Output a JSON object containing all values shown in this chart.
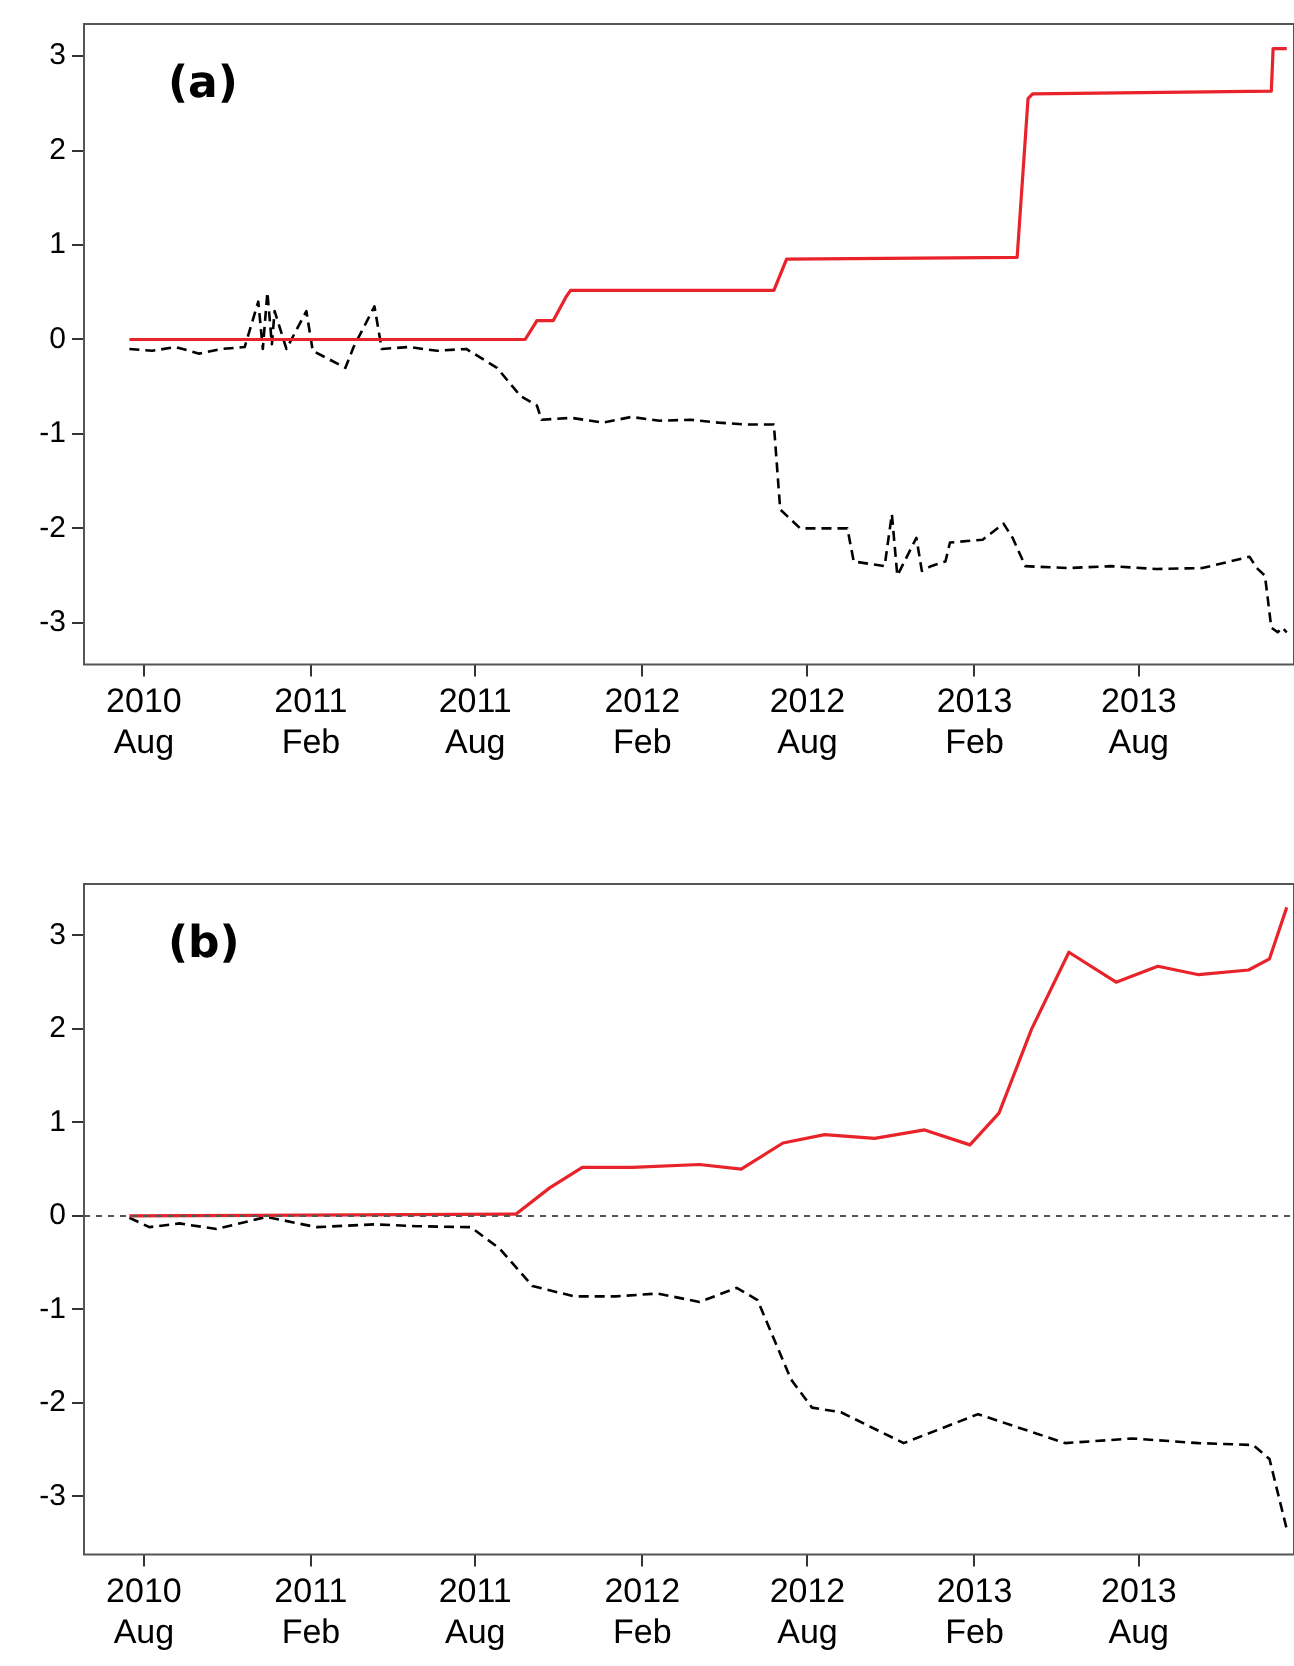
{
  "chart_data": [
    {
      "type": "line",
      "annotations": [
        "(a)"
      ],
      "xlim": [
        "2010-05-27",
        "2014-01-19"
      ],
      "ylim": [
        -3.44,
        3.34
      ],
      "xticks": [
        {
          "value": "2010-08-01",
          "label": "2010 Aug"
        },
        {
          "value": "2011-02-01",
          "label": "2011 Feb"
        },
        {
          "value": "2011-08-01",
          "label": "2011 Aug"
        },
        {
          "value": "2012-02-01",
          "label": "2012 Feb"
        },
        {
          "value": "2012-08-01",
          "label": "2012 Aug"
        },
        {
          "value": "2013-02-01",
          "label": "2013 Feb"
        },
        {
          "value": "2013-08-01",
          "label": "2013 Aug"
        }
      ],
      "yticks": [
        -3,
        -2,
        -1,
        0,
        1,
        2,
        3
      ],
      "legend": false,
      "marker": "none",
      "series": [
        {
          "color": "#e8232a",
          "line_style": "solid",
          "x": [
            "2010-07-16",
            "2011-09-25",
            "2011-10-08",
            "2011-10-26",
            "2011-11-09",
            "2011-11-14",
            "2012-06-25",
            "2012-07-09",
            "2013-03-20",
            "2013-04-01",
            "2013-04-06",
            "2013-12-25",
            "2013-12-27",
            "2014-01-11"
          ],
          "values": [
            0,
            0,
            0.2,
            0.2,
            0.45,
            0.52,
            0.52,
            0.85,
            0.87,
            2.55,
            2.6,
            2.63,
            3.08,
            3.08
          ]
        },
        {
          "color": "#000000",
          "line_style": "dashed",
          "x": [
            "2010-07-16",
            "2010-08-10",
            "2010-09-05",
            "2010-10-01",
            "2010-10-25",
            "2010-11-20",
            "2010-12-05",
            "2010-12-10",
            "2010-12-15",
            "2010-12-20",
            "2010-12-23",
            "2011-01-05",
            "2011-01-27",
            "2011-02-03",
            "2011-03-11",
            "2011-03-20",
            "2011-04-12",
            "2011-04-20",
            "2011-05-20",
            "2011-06-20",
            "2011-07-22",
            "2011-08-25",
            "2011-09-20",
            "2011-10-08",
            "2011-10-13",
            "2011-11-15",
            "2011-12-20",
            "2012-01-20",
            "2012-02-20",
            "2012-03-25",
            "2012-04-25",
            "2012-05-25",
            "2012-06-25",
            "2012-07-02",
            "2012-07-24",
            "2012-09-14",
            "2012-09-21",
            "2012-10-25",
            "2012-11-02",
            "2012-11-08",
            "2012-11-29",
            "2012-12-05",
            "2012-12-15",
            "2012-12-31",
            "2013-01-05",
            "2013-02-10",
            "2013-03-05",
            "2013-03-15",
            "2013-03-29",
            "2013-05-15",
            "2013-07-01",
            "2013-08-20",
            "2013-10-10",
            "2013-12-01",
            "2013-12-09",
            "2013-12-18",
            "2013-12-25",
            "2014-01-01",
            "2014-01-06",
            "2014-01-11"
          ],
          "values": [
            -0.1,
            -0.12,
            -0.08,
            -0.15,
            -0.1,
            -0.08,
            0.4,
            -0.1,
            0.5,
            -0.05,
            0.3,
            -0.1,
            0.3,
            -0.12,
            -0.3,
            -0.08,
            0.35,
            -0.1,
            -0.08,
            -0.12,
            -0.1,
            -0.3,
            -0.6,
            -0.7,
            -0.85,
            -0.83,
            -0.88,
            -0.82,
            -0.86,
            -0.85,
            -0.88,
            -0.9,
            -0.9,
            -1.8,
            -2.0,
            -2.0,
            -2.35,
            -2.4,
            -1.85,
            -2.5,
            -2.1,
            -2.45,
            -2.4,
            -2.35,
            -2.15,
            -2.12,
            -1.95,
            -2.1,
            -2.4,
            -2.42,
            -2.4,
            -2.43,
            -2.42,
            -2.3,
            -2.42,
            -2.5,
            -3.05,
            -3.1,
            -3.05,
            -3.1
          ]
        }
      ]
    },
    {
      "type": "line",
      "annotations": [
        "(b)"
      ],
      "xlim": [
        "2010-05-27",
        "2014-01-19"
      ],
      "ylim": [
        -3.62,
        3.55
      ],
      "xticks": [
        {
          "value": "2010-08-01",
          "label": "2010 Aug"
        },
        {
          "value": "2011-02-01",
          "label": "2011 Feb"
        },
        {
          "value": "2011-08-01",
          "label": "2011 Aug"
        },
        {
          "value": "2012-02-01",
          "label": "2012 Feb"
        },
        {
          "value": "2012-08-01",
          "label": "2012 Aug"
        },
        {
          "value": "2013-02-01",
          "label": "2013 Feb"
        },
        {
          "value": "2013-08-01",
          "label": "2013 Aug"
        }
      ],
      "yticks": [
        -3,
        -2,
        -1,
        0,
        1,
        2,
        3
      ],
      "legend": false,
      "marker": "none",
      "ref_lines": [
        {
          "axis": "y",
          "value": 0,
          "color": "#555555",
          "line_style": "dashed"
        }
      ],
      "series": [
        {
          "color": "#e8232a",
          "line_style": "solid",
          "x": [
            "2010-07-16",
            "2011-09-15",
            "2011-10-22",
            "2011-11-27",
            "2012-01-21",
            "2012-04-04",
            "2012-05-20",
            "2012-07-05",
            "2012-08-20",
            "2012-10-14",
            "2012-12-08",
            "2013-01-27",
            "2013-02-28",
            "2013-04-05",
            "2013-05-16",
            "2013-07-07",
            "2013-08-22",
            "2013-10-06",
            "2013-11-30",
            "2013-12-23",
            "2014-01-11"
          ],
          "values": [
            0,
            0.02,
            0.3,
            0.52,
            0.52,
            0.55,
            0.5,
            0.78,
            0.87,
            0.83,
            0.92,
            0.76,
            1.1,
            2.0,
            2.82,
            2.5,
            2.67,
            2.58,
            2.63,
            2.75,
            3.3
          ]
        },
        {
          "color": "#000000",
          "line_style": "dashed",
          "x": [
            "2010-07-16",
            "2010-08-07",
            "2010-09-09",
            "2010-10-20",
            "2010-12-14",
            "2011-02-07",
            "2011-04-12",
            "2011-05-28",
            "2011-07-27",
            "2011-08-28",
            "2011-10-03",
            "2011-11-18",
            "2012-01-03",
            "2012-02-18",
            "2012-04-04",
            "2012-05-15",
            "2012-06-07",
            "2012-07-14",
            "2012-08-06",
            "2012-09-07",
            "2012-11-15",
            "2013-02-05",
            "2013-05-12",
            "2013-07-25",
            "2013-10-06",
            "2013-12-05",
            "2013-12-23",
            "2014-01-11"
          ],
          "values": [
            -0.02,
            -0.12,
            -0.08,
            -0.14,
            -0.01,
            -0.12,
            -0.09,
            -0.11,
            -0.12,
            -0.35,
            -0.75,
            -0.86,
            -0.86,
            -0.83,
            -0.92,
            -0.77,
            -0.9,
            -1.75,
            -2.05,
            -2.1,
            -2.43,
            -2.12,
            -2.43,
            -2.38,
            -2.43,
            -2.45,
            -2.6,
            -3.35
          ]
        }
      ]
    }
  ]
}
